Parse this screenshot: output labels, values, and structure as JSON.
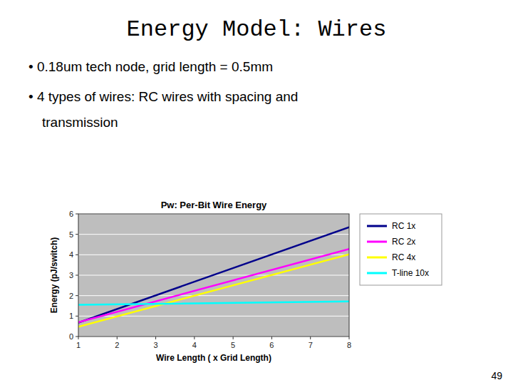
{
  "page": {
    "title": "Energy Model: Wires",
    "bullets": [
      [
        "• 0.18um tech node, grid length = 0.5mm"
      ],
      [
        "• 4 types of wires: RC wires with spacing and",
        "transmission"
      ]
    ],
    "page_number": "49"
  },
  "chart_data": {
    "type": "line",
    "title": "Pw: Per-Bit Wire Energy",
    "x_label": "Wire Length ( x Grid Length)",
    "y_label": "Energy (pJ/switch)",
    "x": [
      1,
      8
    ],
    "series": [
      {
        "name": "RC 1x",
        "color": "#00008B",
        "values": [
          0.68,
          5.35
        ]
      },
      {
        "name": "RC 2x",
        "color": "#FF00FF",
        "values": [
          0.7,
          4.28
        ]
      },
      {
        "name": "RC 4x",
        "color": "#FFFF00",
        "values": [
          0.48,
          4.02
        ]
      },
      {
        "name": "T-line 10x",
        "color": "#00FFFF",
        "values": [
          1.55,
          1.72
        ]
      }
    ],
    "xlim": [
      1,
      8
    ],
    "ylim": [
      0,
      6
    ],
    "xticks": [
      1,
      2,
      3,
      4,
      5,
      6,
      7,
      8
    ],
    "yticks": [
      0,
      1,
      2,
      3,
      4,
      5,
      6
    ],
    "grid": true,
    "legend": "right"
  }
}
